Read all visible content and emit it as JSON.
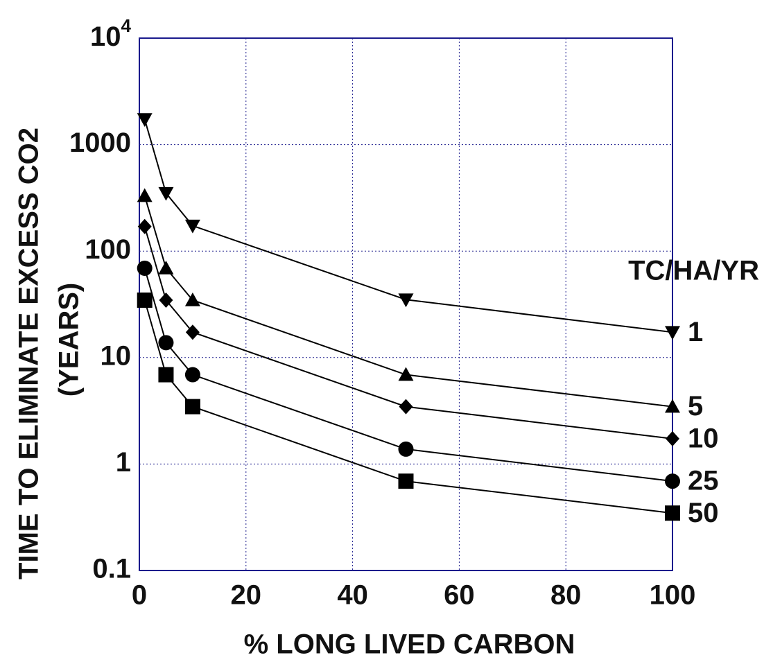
{
  "chart_data": {
    "type": "line",
    "x_label": "% LONG LIVED CARBON",
    "y_label": [
      "TIME TO ELIMINATE EXCESS CO2",
      "(YEARS)"
    ],
    "legend_title": "TC/HA/YR",
    "x": [
      1,
      5,
      10,
      50,
      100
    ],
    "series": [
      {
        "name": "1",
        "color": "#000000",
        "marker": "triangle-down",
        "values": [
          1730,
          350,
          173,
          35,
          17.3
        ]
      },
      {
        "name": "5",
        "color": "#000000",
        "marker": "triangle-up",
        "values": [
          330,
          69,
          34.6,
          6.9,
          3.46
        ]
      },
      {
        "name": "10",
        "color": "#000000",
        "marker": "diamond",
        "values": [
          170,
          34.6,
          17.3,
          3.46,
          1.73
        ]
      },
      {
        "name": "25",
        "color": "#000000",
        "marker": "circle",
        "values": [
          69,
          13.8,
          6.9,
          1.38,
          0.69
        ]
      },
      {
        "name": "50",
        "color": "#000000",
        "marker": "square",
        "values": [
          34.6,
          6.9,
          3.46,
          0.69,
          0.346
        ]
      }
    ],
    "xlim": [
      0,
      100
    ],
    "xticks": [
      0,
      20,
      40,
      60,
      80,
      100
    ],
    "ylim": [
      0.1,
      10000
    ],
    "yticks": [
      0.1,
      1,
      10,
      100,
      1000,
      {
        "value": 10000,
        "label": "10^4"
      }
    ],
    "log_y": true,
    "grid": true,
    "frame_color": "#1a1a8c"
  }
}
